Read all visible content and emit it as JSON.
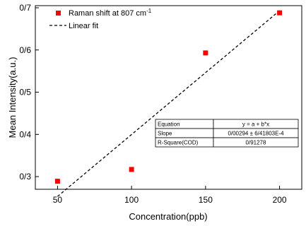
{
  "chart_data": {
    "type": "scatter",
    "xlabel": "Concentration(ppb)",
    "ylabel": "Mean Intensity(a.u.)",
    "xlim": [
      35,
      215
    ],
    "ylim": [
      0.27,
      0.705
    ],
    "x_ticks": [
      50,
      100,
      150,
      200
    ],
    "x_tick_labels": [
      "50",
      "100",
      "150",
      "200"
    ],
    "y_ticks": [
      0.3,
      0.4,
      0.5,
      0.6,
      0.7
    ],
    "y_tick_labels": [
      "0/3",
      "0/4",
      "0/5",
      "0/6",
      "0/7"
    ],
    "grid": false,
    "legend_position": "top-left",
    "series": [
      {
        "name": "Raman shift at 807 cm",
        "name_superscript": "-1",
        "marker": "square",
        "color": "#ff0000",
        "x": [
          50,
          100,
          150,
          200
        ],
        "y": [
          0.289,
          0.317,
          0.593,
          0.688
        ]
      },
      {
        "name": "Linear fit",
        "line": "dashed",
        "color": "#000000",
        "x": [
          50,
          200
        ],
        "y": [
          0.253,
          0.693
        ]
      }
    ],
    "fit_table": {
      "rows": [
        [
          "Equation",
          "y = a + b*x"
        ],
        [
          "Slope",
          "0/00294 ± 6/41803E-4"
        ],
        [
          "R-Square(COD)",
          "0/91278"
        ]
      ]
    }
  }
}
